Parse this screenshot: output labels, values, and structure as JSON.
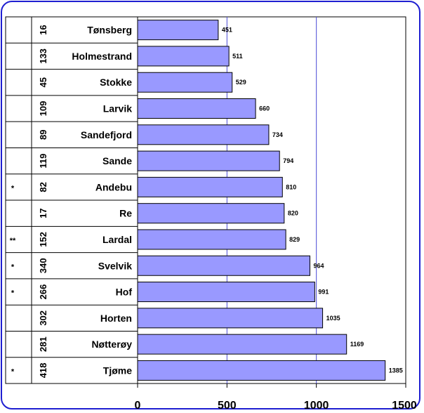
{
  "chart_data": {
    "type": "bar",
    "orientation": "horizontal",
    "categories": [
      "Tønsberg",
      "Holmestrand",
      "Stokke",
      "Larvik",
      "Sandefjord",
      "Sande",
      "Andebu",
      "Re",
      "Lardal",
      "Svelvik",
      "Hof",
      "Horten",
      "Nøtterøy",
      "Tjøme"
    ],
    "ranks": [
      "16",
      "133",
      "45",
      "109",
      "89",
      "119",
      "82",
      "17",
      "152",
      "340",
      "266",
      "302",
      "281",
      "418"
    ],
    "marks": [
      "",
      "",
      "",
      "",
      "",
      "",
      "*",
      "",
      "**",
      "*",
      "*",
      "",
      "",
      "*"
    ],
    "values": [
      451,
      511,
      529,
      660,
      734,
      794,
      810,
      820,
      829,
      964,
      991,
      1035,
      1169,
      1385
    ],
    "xlim": [
      0,
      1500
    ],
    "xticks": [
      "0",
      "500",
      "1000",
      "1500"
    ],
    "gridlines_at": [
      500,
      1000
    ],
    "bar_color": "#9999ff",
    "grid": true
  }
}
